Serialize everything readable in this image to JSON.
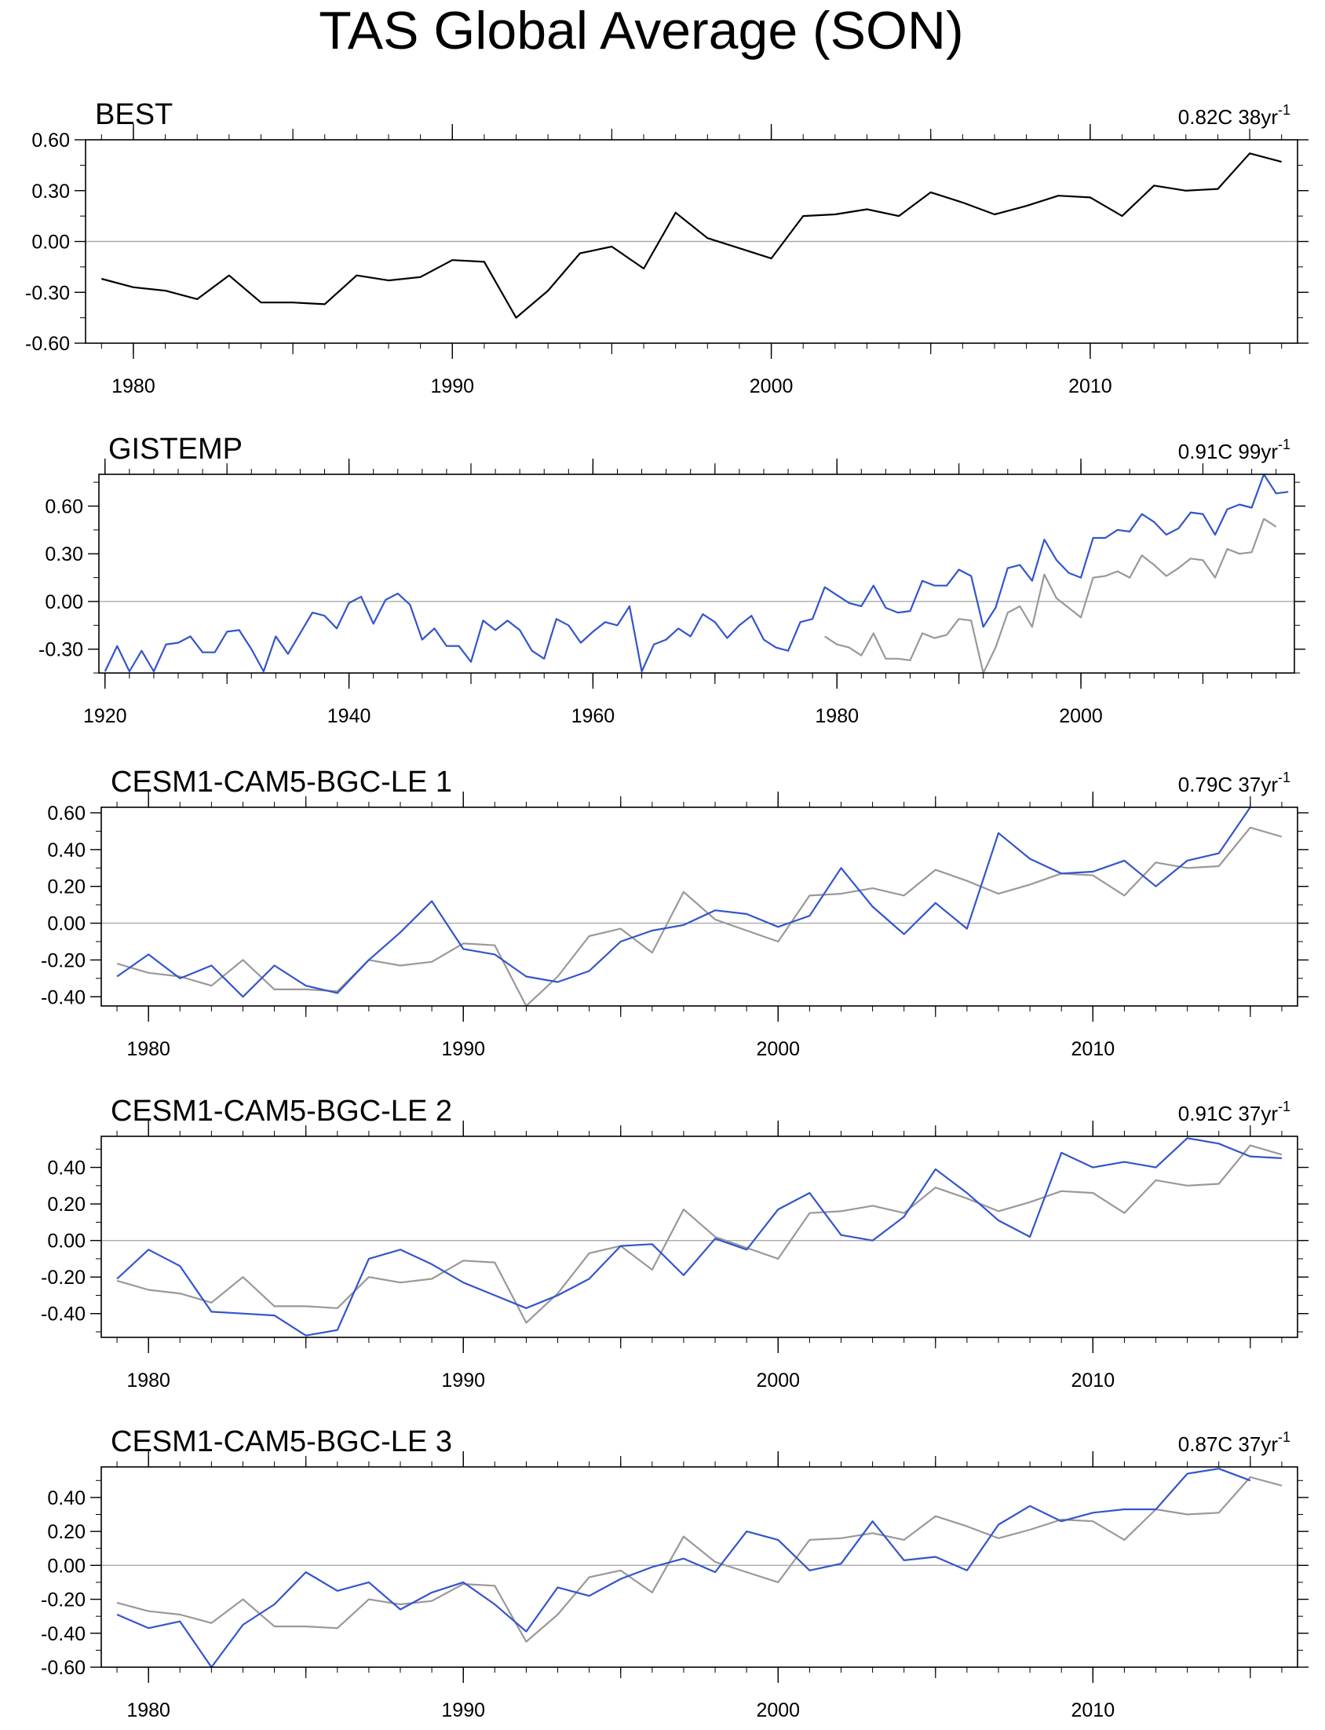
{
  "title": "TAS Global Average (SON)",
  "colors": {
    "model": "#3355cc",
    "reference": "#999999",
    "best": "#000000",
    "zero": "#aaaaaa",
    "frame": "#000000"
  },
  "chart_data": [
    {
      "type": "line",
      "title": "BEST",
      "trend_value": "0.82C 38yr",
      "trend_exp": "-1",
      "xlim": [
        1978.5,
        2016.5
      ],
      "ylim": [
        -0.6,
        0.6
      ],
      "yticks": [
        -0.6,
        -0.3,
        0,
        0.3,
        0.6
      ],
      "ytick_labels": [
        "-0.60",
        "-0.30",
        "0.00",
        "0.30",
        "0.60"
      ],
      "xticks": [
        1980,
        1990,
        2000,
        2010
      ],
      "series": [
        {
          "name": "BEST",
          "color": "#000000",
          "x": [
            1979,
            1980,
            1981,
            1982,
            1983,
            1984,
            1985,
            1986,
            1987,
            1988,
            1989,
            1990,
            1991,
            1992,
            1993,
            1994,
            1995,
            1996,
            1997,
            1998,
            1999,
            2000,
            2001,
            2002,
            2003,
            2004,
            2005,
            2006,
            2007,
            2008,
            2009,
            2010,
            2011,
            2012,
            2013,
            2014,
            2015,
            2016
          ],
          "values": [
            -0.22,
            -0.27,
            -0.29,
            -0.34,
            -0.2,
            -0.36,
            -0.36,
            -0.37,
            -0.2,
            -0.23,
            -0.21,
            -0.11,
            -0.12,
            -0.45,
            -0.29,
            -0.07,
            -0.03,
            -0.16,
            0.17,
            0.02,
            -0.04,
            -0.1,
            0.15,
            0.16,
            0.19,
            0.15,
            0.29,
            0.23,
            0.16,
            0.21,
            0.27,
            0.26,
            0.15,
            0.33,
            0.3,
            0.31,
            0.52,
            0.47
          ]
        }
      ]
    },
    {
      "type": "line",
      "title": "GISTEMP",
      "trend_value": "0.91C 99yr",
      "trend_exp": "-1",
      "xlim": [
        1919.5,
        2017.5
      ],
      "ylim": [
        -0.45,
        0.8
      ],
      "yticks": [
        -0.3,
        0,
        0.3,
        0.6
      ],
      "ytick_labels": [
        "-0.30",
        "0.00",
        "0.30",
        "0.60"
      ],
      "xticks": [
        1920,
        1940,
        1960,
        1980,
        2000
      ],
      "series": [
        {
          "name": "GISTEMP",
          "color": "#3355cc",
          "x": [
            1920,
            1921,
            1922,
            1923,
            1924,
            1925,
            1926,
            1927,
            1928,
            1929,
            1930,
            1931,
            1932,
            1933,
            1934,
            1935,
            1936,
            1937,
            1938,
            1939,
            1940,
            1941,
            1942,
            1943,
            1944,
            1945,
            1946,
            1947,
            1948,
            1949,
            1950,
            1951,
            1952,
            1953,
            1954,
            1955,
            1956,
            1957,
            1958,
            1959,
            1960,
            1961,
            1962,
            1963,
            1964,
            1965,
            1966,
            1967,
            1968,
            1969,
            1970,
            1971,
            1972,
            1973,
            1974,
            1975,
            1976,
            1977,
            1978,
            1979,
            1980,
            1981,
            1982,
            1983,
            1984,
            1985,
            1986,
            1987,
            1988,
            1989,
            1990,
            1991,
            1992,
            1993,
            1994,
            1995,
            1996,
            1997,
            1998,
            1999,
            2000,
            2001,
            2002,
            2003,
            2004,
            2005,
            2006,
            2007,
            2008,
            2009,
            2010,
            2011,
            2012,
            2013,
            2014,
            2015,
            2016,
            2017
          ],
          "values": [
            -0.44,
            -0.28,
            -0.44,
            -0.31,
            -0.44,
            -0.27,
            -0.26,
            -0.22,
            -0.32,
            -0.32,
            -0.19,
            -0.18,
            -0.3,
            -0.44,
            -0.22,
            -0.33,
            -0.2,
            -0.07,
            -0.09,
            -0.17,
            -0.01,
            0.03,
            -0.14,
            0.01,
            0.05,
            -0.02,
            -0.24,
            -0.17,
            -0.28,
            -0.28,
            -0.38,
            -0.12,
            -0.18,
            -0.12,
            -0.18,
            -0.31,
            -0.36,
            -0.11,
            -0.15,
            -0.26,
            -0.19,
            -0.13,
            -0.15,
            -0.03,
            -0.44,
            -0.27,
            -0.24,
            -0.17,
            -0.22,
            -0.08,
            -0.13,
            -0.23,
            -0.15,
            -0.09,
            -0.24,
            -0.29,
            -0.31,
            -0.13,
            -0.11,
            0.09,
            0.04,
            -0.01,
            -0.03,
            0.1,
            -0.04,
            -0.07,
            -0.06,
            0.13,
            0.1,
            0.1,
            0.2,
            0.16,
            -0.16,
            -0.04,
            0.21,
            0.23,
            0.13,
            0.39,
            0.26,
            0.18,
            0.15,
            0.4,
            0.4,
            0.45,
            0.44,
            0.55,
            0.5,
            0.42,
            0.46,
            0.56,
            0.55,
            0.42,
            0.58,
            0.61,
            0.59,
            0.8,
            0.68,
            0.69
          ]
        },
        {
          "name": "BEST",
          "color": "#999999",
          "x": [
            1979,
            1980,
            1981,
            1982,
            1983,
            1984,
            1985,
            1986,
            1987,
            1988,
            1989,
            1990,
            1991,
            1992,
            1993,
            1994,
            1995,
            1996,
            1997,
            1998,
            1999,
            2000,
            2001,
            2002,
            2003,
            2004,
            2005,
            2006,
            2007,
            2008,
            2009,
            2010,
            2011,
            2012,
            2013,
            2014,
            2015,
            2016
          ],
          "values": [
            -0.22,
            -0.27,
            -0.29,
            -0.34,
            -0.2,
            -0.36,
            -0.36,
            -0.37,
            -0.2,
            -0.23,
            -0.21,
            -0.11,
            -0.12,
            -0.45,
            -0.29,
            -0.07,
            -0.03,
            -0.16,
            0.17,
            0.02,
            -0.04,
            -0.1,
            0.15,
            0.16,
            0.19,
            0.15,
            0.29,
            0.23,
            0.16,
            0.21,
            0.27,
            0.26,
            0.15,
            0.33,
            0.3,
            0.31,
            0.52,
            0.47
          ]
        }
      ]
    },
    {
      "type": "line",
      "title": "CESM1-CAM5-BGC-LE 1",
      "trend_value": "0.79C 37yr",
      "trend_exp": "-1",
      "xlim": [
        1978.5,
        2016.5
      ],
      "ylim": [
        -0.45,
        0.63
      ],
      "yticks": [
        -0.4,
        -0.2,
        0,
        0.2,
        0.4,
        0.6
      ],
      "ytick_labels": [
        "-0.40",
        "-0.20",
        "0.00",
        "0.20",
        "0.40",
        "0.60"
      ],
      "xticks": [
        1980,
        1990,
        2000,
        2010
      ],
      "series": [
        {
          "name": "CESM1-CAM5-BGC-LE 1",
          "color": "#3355cc",
          "x": [
            1979,
            1980,
            1981,
            1982,
            1983,
            1984,
            1985,
            1986,
            1987,
            1988,
            1989,
            1990,
            1991,
            1992,
            1993,
            1994,
            1995,
            1996,
            1997,
            1998,
            1999,
            2000,
            2001,
            2002,
            2003,
            2004,
            2005,
            2006,
            2007,
            2008,
            2009,
            2010,
            2011,
            2012,
            2013,
            2014,
            2015
          ],
          "values": [
            -0.29,
            -0.17,
            -0.3,
            -0.23,
            -0.4,
            -0.23,
            -0.34,
            -0.38,
            -0.2,
            -0.05,
            0.12,
            -0.14,
            -0.17,
            -0.29,
            -0.32,
            -0.26,
            -0.1,
            -0.04,
            -0.01,
            0.07,
            0.05,
            -0.02,
            0.04,
            0.3,
            0.09,
            -0.06,
            0.11,
            -0.03,
            0.49,
            0.35,
            0.27,
            0.28,
            0.34,
            0.2,
            0.34,
            0.38,
            0.63
          ]
        },
        {
          "name": "BEST",
          "color": "#999999",
          "x": [
            1979,
            1980,
            1981,
            1982,
            1983,
            1984,
            1985,
            1986,
            1987,
            1988,
            1989,
            1990,
            1991,
            1992,
            1993,
            1994,
            1995,
            1996,
            1997,
            1998,
            1999,
            2000,
            2001,
            2002,
            2003,
            2004,
            2005,
            2006,
            2007,
            2008,
            2009,
            2010,
            2011,
            2012,
            2013,
            2014,
            2015,
            2016
          ],
          "values": [
            -0.22,
            -0.27,
            -0.29,
            -0.34,
            -0.2,
            -0.36,
            -0.36,
            -0.37,
            -0.2,
            -0.23,
            -0.21,
            -0.11,
            -0.12,
            -0.45,
            -0.29,
            -0.07,
            -0.03,
            -0.16,
            0.17,
            0.02,
            -0.04,
            -0.1,
            0.15,
            0.16,
            0.19,
            0.15,
            0.29,
            0.23,
            0.16,
            0.21,
            0.27,
            0.26,
            0.15,
            0.33,
            0.3,
            0.31,
            0.52,
            0.47
          ]
        }
      ]
    },
    {
      "type": "line",
      "title": "CESM1-CAM5-BGC-LE 2",
      "trend_value": "0.91C 37yr",
      "trend_exp": "-1",
      "xlim": [
        1978.5,
        2016.5
      ],
      "ylim": [
        -0.53,
        0.57
      ],
      "yticks": [
        -0.4,
        -0.2,
        0,
        0.2,
        0.4
      ],
      "ytick_labels": [
        "-0.40",
        "-0.20",
        "0.00",
        "0.20",
        "0.40"
      ],
      "xticks": [
        1980,
        1990,
        2000,
        2010
      ],
      "series": [
        {
          "name": "CESM1-CAM5-BGC-LE 2",
          "color": "#3355cc",
          "x": [
            1979,
            1980,
            1981,
            1982,
            1983,
            1984,
            1985,
            1986,
            1987,
            1988,
            1989,
            1990,
            1991,
            1992,
            1993,
            1994,
            1995,
            1996,
            1997,
            1998,
            1999,
            2000,
            2001,
            2002,
            2003,
            2004,
            2005,
            2006,
            2007,
            2008,
            2009,
            2010,
            2011,
            2012,
            2013,
            2014,
            2015,
            2016
          ],
          "values": [
            -0.21,
            -0.05,
            -0.14,
            -0.39,
            -0.4,
            -0.41,
            -0.52,
            -0.49,
            -0.1,
            -0.05,
            -0.13,
            -0.23,
            -0.3,
            -0.37,
            -0.3,
            -0.21,
            -0.03,
            -0.02,
            -0.19,
            0.01,
            -0.05,
            0.17,
            0.26,
            0.03,
            0.0,
            0.13,
            0.39,
            0.26,
            0.11,
            0.02,
            0.48,
            0.4,
            0.43,
            0.4,
            0.56,
            0.53,
            0.46,
            0.45
          ]
        },
        {
          "name": "BEST",
          "color": "#999999",
          "x": [
            1979,
            1980,
            1981,
            1982,
            1983,
            1984,
            1985,
            1986,
            1987,
            1988,
            1989,
            1990,
            1991,
            1992,
            1993,
            1994,
            1995,
            1996,
            1997,
            1998,
            1999,
            2000,
            2001,
            2002,
            2003,
            2004,
            2005,
            2006,
            2007,
            2008,
            2009,
            2010,
            2011,
            2012,
            2013,
            2014,
            2015,
            2016
          ],
          "values": [
            -0.22,
            -0.27,
            -0.29,
            -0.34,
            -0.2,
            -0.36,
            -0.36,
            -0.37,
            -0.2,
            -0.23,
            -0.21,
            -0.11,
            -0.12,
            -0.45,
            -0.29,
            -0.07,
            -0.03,
            -0.16,
            0.17,
            0.02,
            -0.04,
            -0.1,
            0.15,
            0.16,
            0.19,
            0.15,
            0.29,
            0.23,
            0.16,
            0.21,
            0.27,
            0.26,
            0.15,
            0.33,
            0.3,
            0.31,
            0.52,
            0.47
          ]
        }
      ]
    },
    {
      "type": "line",
      "title": "CESM1-CAM5-BGC-LE 3",
      "trend_value": "0.87C 37yr",
      "trend_exp": "-1",
      "xlim": [
        1978.5,
        2016.5
      ],
      "ylim": [
        -0.6,
        0.58
      ],
      "yticks": [
        -0.6,
        -0.4,
        -0.2,
        0,
        0.2,
        0.4
      ],
      "ytick_labels": [
        "-0.60",
        "-0.40",
        "-0.20",
        "0.00",
        "0.20",
        "0.40"
      ],
      "xticks": [
        1980,
        1990,
        2000,
        2010
      ],
      "series": [
        {
          "name": "CESM1-CAM5-BGC-LE 3",
          "color": "#3355cc",
          "x": [
            1979,
            1980,
            1981,
            1982,
            1983,
            1984,
            1985,
            1986,
            1987,
            1988,
            1989,
            1990,
            1991,
            1992,
            1993,
            1994,
            1995,
            1996,
            1997,
            1998,
            1999,
            2000,
            2001,
            2002,
            2003,
            2004,
            2005,
            2006,
            2007,
            2008,
            2009,
            2010,
            2011,
            2012,
            2013,
            2014,
            2015
          ],
          "values": [
            -0.29,
            -0.37,
            -0.33,
            -0.6,
            -0.35,
            -0.23,
            -0.04,
            -0.15,
            -0.1,
            -0.26,
            -0.16,
            -0.1,
            -0.23,
            -0.39,
            -0.13,
            -0.18,
            -0.08,
            -0.01,
            0.04,
            -0.04,
            0.2,
            0.15,
            -0.03,
            0.01,
            0.26,
            0.03,
            0.05,
            -0.03,
            0.24,
            0.35,
            0.26,
            0.31,
            0.33,
            0.33,
            0.54,
            0.57,
            0.5
          ]
        },
        {
          "name": "BEST",
          "color": "#999999",
          "x": [
            1979,
            1980,
            1981,
            1982,
            1983,
            1984,
            1985,
            1986,
            1987,
            1988,
            1989,
            1990,
            1991,
            1992,
            1993,
            1994,
            1995,
            1996,
            1997,
            1998,
            1999,
            2000,
            2001,
            2002,
            2003,
            2004,
            2005,
            2006,
            2007,
            2008,
            2009,
            2010,
            2011,
            2012,
            2013,
            2014,
            2015,
            2016
          ],
          "values": [
            -0.22,
            -0.27,
            -0.29,
            -0.34,
            -0.2,
            -0.36,
            -0.36,
            -0.37,
            -0.2,
            -0.23,
            -0.21,
            -0.11,
            -0.12,
            -0.45,
            -0.29,
            -0.07,
            -0.03,
            -0.16,
            0.17,
            0.02,
            -0.04,
            -0.1,
            0.15,
            0.16,
            0.19,
            0.15,
            0.29,
            0.23,
            0.16,
            0.21,
            0.27,
            0.26,
            0.15,
            0.33,
            0.3,
            0.31,
            0.52,
            0.47
          ]
        }
      ]
    }
  ]
}
